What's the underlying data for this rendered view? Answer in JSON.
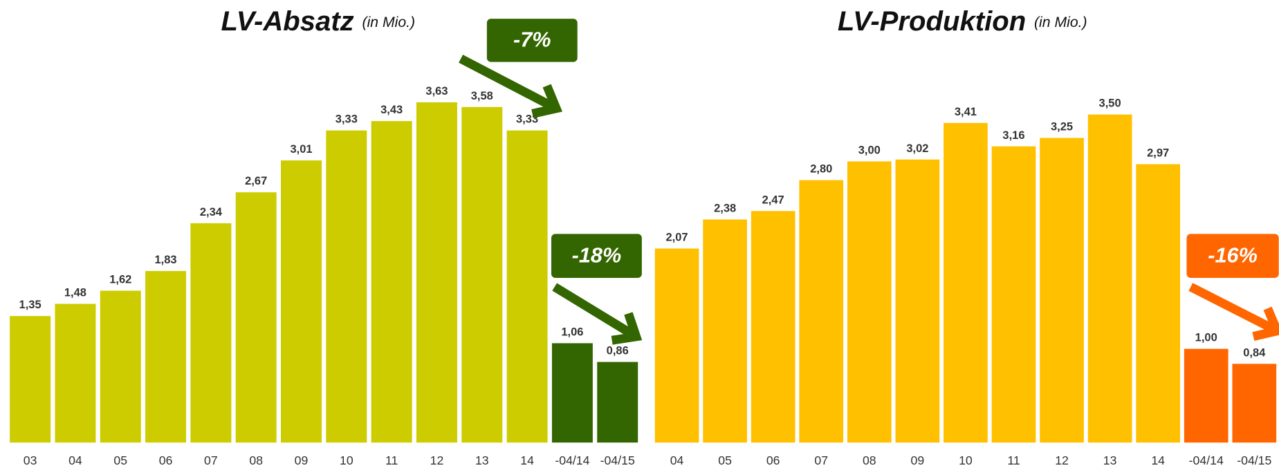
{
  "chart_data": [
    {
      "type": "bar",
      "title": "LV-Absatz",
      "subtitle": "(in Mio.)",
      "categories": [
        "03",
        "04",
        "05",
        "06",
        "07",
        "08",
        "09",
        "10",
        "11",
        "12",
        "13",
        "14",
        "-04/14",
        "-04/15"
      ],
      "values": [
        1.35,
        1.48,
        1.62,
        1.83,
        2.34,
        2.67,
        3.01,
        3.33,
        3.43,
        3.63,
        3.58,
        3.33,
        1.06,
        0.86
      ],
      "value_labels": [
        "1,35",
        "1,48",
        "1,62",
        "1,83",
        "2,34",
        "2,67",
        "3,01",
        "3,33",
        "3,43",
        "3,63",
        "3,58",
        "3,33",
        "1,06",
        "0,86"
      ],
      "colors": [
        "#cccc00",
        "#cccc00",
        "#cccc00",
        "#cccc00",
        "#cccc00",
        "#cccc00",
        "#cccc00",
        "#cccc00",
        "#cccc00",
        "#cccc00",
        "#cccc00",
        "#cccc00",
        "#336600",
        "#336600"
      ],
      "annotations": [
        {
          "text": "-7%",
          "color": "#336600"
        },
        {
          "text": "-18%",
          "color": "#336600"
        }
      ]
    },
    {
      "type": "bar",
      "title": "LV-Produktion",
      "subtitle": "(in Mio.)",
      "categories": [
        "04",
        "05",
        "06",
        "07",
        "08",
        "09",
        "10",
        "11",
        "12",
        "13",
        "14",
        "-04/14",
        "-04/15"
      ],
      "values": [
        2.07,
        2.38,
        2.47,
        2.8,
        3.0,
        3.02,
        3.41,
        3.16,
        3.25,
        3.5,
        2.97,
        1.0,
        0.84
      ],
      "value_labels": [
        "2,07",
        "2,38",
        "2,47",
        "2,80",
        "3,00",
        "3,02",
        "3,41",
        "3,16",
        "3,25",
        "3,50",
        "2,97",
        "1,00",
        "0,84"
      ],
      "colors": [
        "#ffc000",
        "#ffc000",
        "#ffc000",
        "#ffc000",
        "#ffc000",
        "#ffc000",
        "#ffc000",
        "#ffc000",
        "#ffc000",
        "#ffc000",
        "#ffc000",
        "#ff6600",
        "#ff6600"
      ],
      "annotations": [
        {
          "text": "-16%",
          "color": "#ff6600"
        }
      ]
    }
  ]
}
